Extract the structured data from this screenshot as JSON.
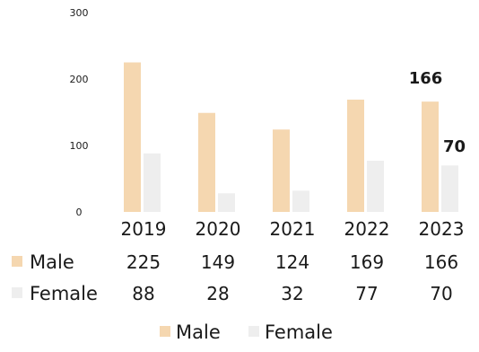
{
  "chart_data": {
    "type": "bar",
    "title": "",
    "xlabel": "",
    "ylabel": "",
    "ylim": [
      0,
      300
    ],
    "yticks": [
      0,
      100,
      200,
      300
    ],
    "grid": false,
    "legend_position": "bottom",
    "categories": [
      "2019",
      "2020",
      "2021",
      "2022",
      "2023"
    ],
    "series": [
      {
        "name": "Male",
        "values": [
          225,
          149,
          124,
          169,
          166
        ],
        "color": "#f5d7b0"
      },
      {
        "name": "Female",
        "values": [
          88,
          28,
          32,
          77,
          70
        ],
        "color": "#eeeeee"
      }
    ],
    "data_labels": [
      {
        "series": "Male",
        "category": "2023",
        "text": "166"
      },
      {
        "series": "Female",
        "category": "2023",
        "text": "70"
      }
    ],
    "data_table": {
      "rows": [
        {
          "label": "Male",
          "values": [
            "225",
            "149",
            "124",
            "169",
            "166"
          ]
        },
        {
          "label": "Female",
          "values": [
            "88",
            "28",
            "32",
            "77",
            "70"
          ]
        }
      ]
    },
    "legend": [
      "Male",
      "Female"
    ]
  }
}
